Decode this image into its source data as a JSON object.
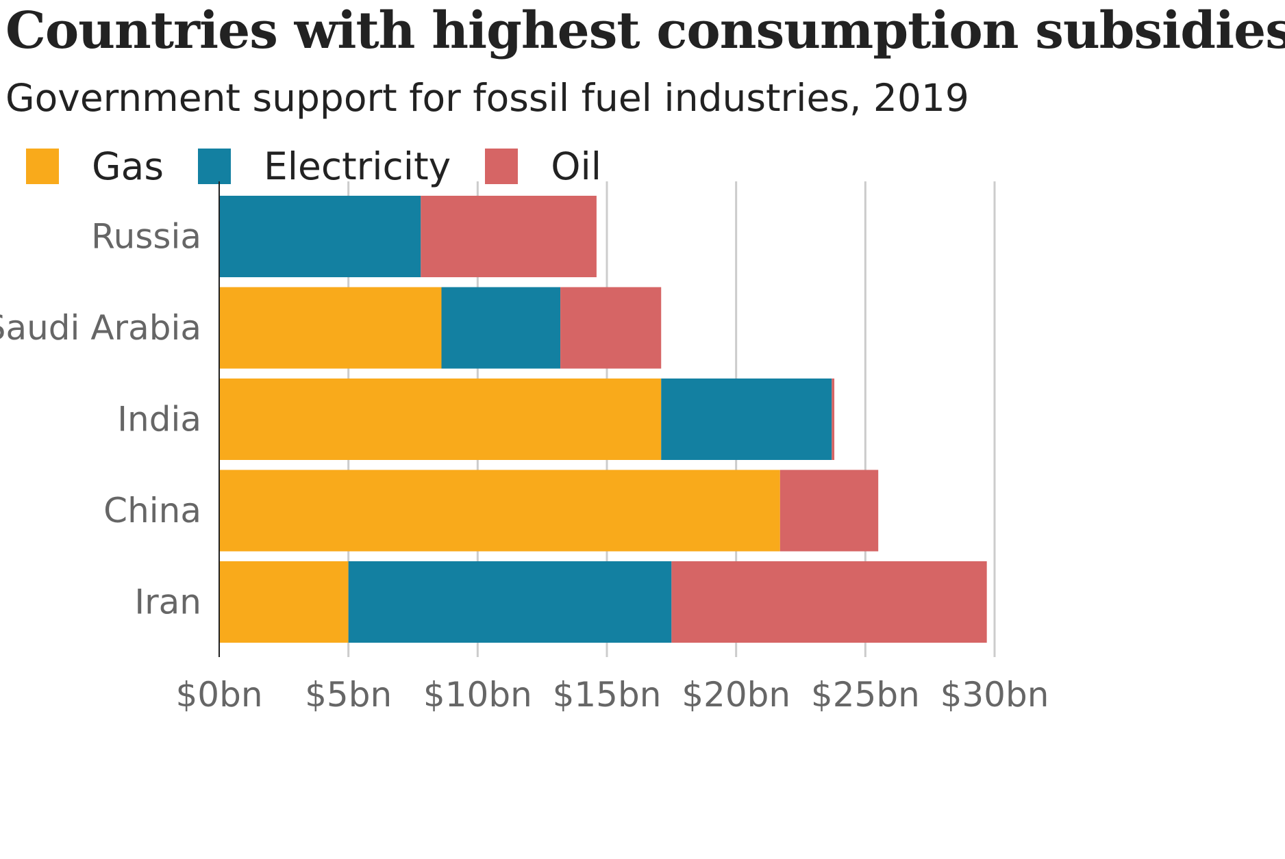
{
  "chart_data": {
    "type": "bar",
    "orientation": "horizontal",
    "stacked": true,
    "title": "Countries with highest consumption subsidies",
    "subtitle": "Government support for fossil fuel industries, 2019",
    "categories": [
      "Russia",
      "Saudi Arabia",
      "India",
      "China",
      "Iran"
    ],
    "series": [
      {
        "name": "Gas",
        "color": "#f9aa1b",
        "values": [
          0,
          8.6,
          17.1,
          21.7,
          5.0
        ]
      },
      {
        "name": "Electricity",
        "color": "#1380a1",
        "values": [
          7.8,
          4.6,
          6.6,
          0,
          12.5
        ]
      },
      {
        "name": "Oil",
        "color": "#d66565",
        "values": [
          6.8,
          3.9,
          0.1,
          3.8,
          12.2
        ]
      }
    ],
    "xlim": [
      0,
      30
    ],
    "xticks": [
      0,
      5,
      10,
      15,
      20,
      25,
      30
    ],
    "xtick_labels": [
      "$0bn",
      "$5bn",
      "$10bn",
      "$15bn",
      "$20bn",
      "$25bn",
      "$30bn"
    ],
    "grid": true,
    "legend_position": "top-left"
  }
}
